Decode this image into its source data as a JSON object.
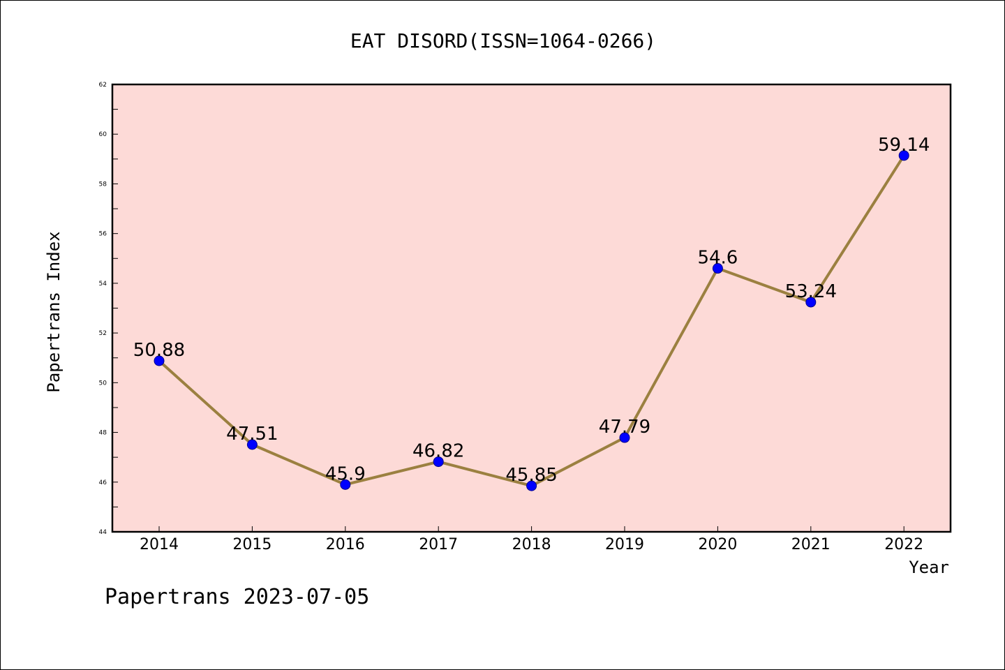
{
  "chart_data": {
    "type": "line",
    "title": "EAT DISORD(ISSN=1064-0266)",
    "xlabel": "Year",
    "ylabel": "Papertrans Index",
    "footer": "Papertrans 2023-07-05",
    "categories": [
      "2014",
      "2015",
      "2016",
      "2017",
      "2018",
      "2019",
      "2020",
      "2021",
      "2022"
    ],
    "series": [
      {
        "values": [
          50.88,
          47.51,
          45.9,
          46.82,
          45.85,
          47.79,
          54.6,
          53.24,
          59.14
        ],
        "labels": [
          "50.88",
          "47.51",
          "45.9",
          "46.82",
          "45.85",
          "47.79",
          "54.6",
          "53.24",
          "59.14"
        ]
      }
    ],
    "ylim": [
      44,
      62
    ],
    "yticks": [
      "44",
      "46",
      "48",
      "50",
      "52",
      "54",
      "56",
      "58",
      "60",
      "62"
    ],
    "grid": false,
    "colors": {
      "plot_background": "#fddad7",
      "line": "#9b8040",
      "marker": "#0000ff"
    }
  }
}
